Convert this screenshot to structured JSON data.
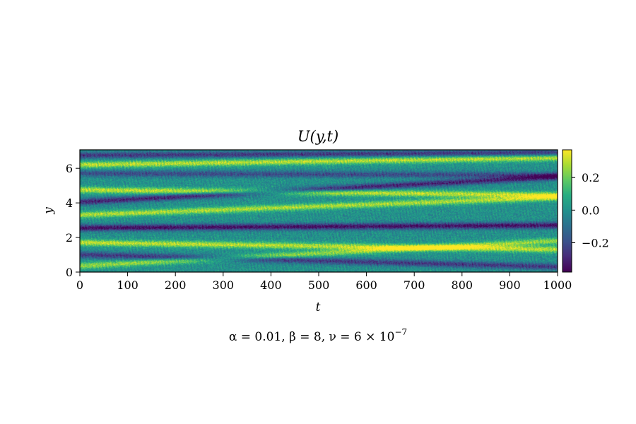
{
  "chart_data": {
    "type": "heatmap",
    "title": "U(y,t)",
    "xlabel": "t",
    "ylabel": "y",
    "xlim": [
      0,
      1000
    ],
    "ylim": [
      0,
      7.07
    ],
    "xticks": [
      0,
      100,
      200,
      300,
      400,
      500,
      600,
      700,
      800,
      900,
      1000
    ],
    "yticks": [
      0,
      2,
      4,
      6
    ],
    "colormap": "viridis",
    "colorbar": {
      "range": [
        -0.38,
        0.37
      ],
      "ticks": [
        0.2,
        0.0,
        -0.2
      ],
      "tick_labels": [
        "0.2",
        "0.0",
        "−0.2"
      ]
    },
    "zonal_jets": [
      {
        "y_start": 6.2,
        "y_end": 6.6,
        "t_range": [
          0,
          1000
        ],
        "U": 0.3
      },
      {
        "y_start": 4.75,
        "y_end": 4.45,
        "t_range": [
          0,
          1000
        ],
        "U": 0.3
      },
      {
        "y_start": 3.3,
        "y_end": 4.3,
        "t_range": [
          0,
          1000
        ],
        "U": 0.28
      },
      {
        "y_start": 1.7,
        "y_end": 1.3,
        "t_range": [
          0,
          1000
        ],
        "U": 0.3
      },
      {
        "y_start": 0.35,
        "y_end": 1.8,
        "t_range": [
          0,
          1000
        ],
        "U": 0.25
      }
    ],
    "retrograde_bands": [
      {
        "y_start": 6.75,
        "y_end": 6.9,
        "t_range": [
          0,
          1000
        ],
        "U": -0.25
      },
      {
        "y_start": 5.7,
        "y_end": 5.6,
        "t_range": [
          0,
          1000
        ],
        "U": -0.2
      },
      {
        "y_start": 4.05,
        "y_end": 5.5,
        "t_range": [
          0,
          1000
        ],
        "U": -0.3
      },
      {
        "y_start": 2.55,
        "y_end": 2.7,
        "t_range": [
          0,
          1000
        ],
        "U": -0.35
      },
      {
        "y_start": 1.0,
        "y_end": 0.3,
        "t_range": [
          0,
          1000
        ],
        "U": -0.25
      }
    ],
    "caption": "α = 0.01, β = 8, ν = 6 × 10",
    "caption_exponent": "−7"
  }
}
